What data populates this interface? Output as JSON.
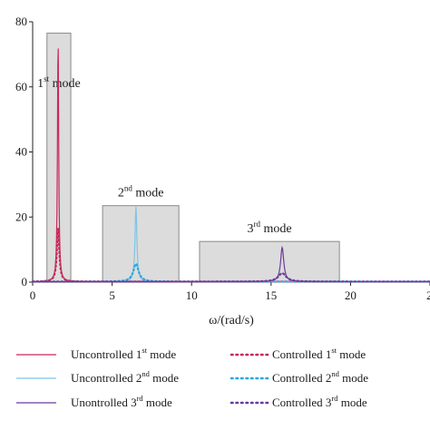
{
  "chart_data": {
    "type": "line",
    "title": "",
    "xlabel": "ω/(rad/s)",
    "ylabel": "",
    "xlim": [
      0,
      25
    ],
    "ylim": [
      0,
      80
    ],
    "x_ticks": [
      "0",
      "5",
      "10",
      "15",
      "20",
      "2"
    ],
    "y_ticks": [
      "0",
      "20",
      "40",
      "60",
      "80"
    ],
    "grid": false,
    "legend_position": "bottom",
    "mode_regions": [
      {
        "label": "1",
        "sup": "st",
        "suffix": " mode",
        "x_range": [
          0.9,
          2.4
        ],
        "y_max": 76.5
      },
      {
        "label": "2",
        "sup": "nd",
        "suffix": " mode",
        "x_range": [
          4.4,
          9.2
        ],
        "y_max": 23.5
      },
      {
        "label": "3",
        "sup": "rd",
        "suffix": " mode",
        "x_range": [
          10.5,
          19.3
        ],
        "y_max": 12.5
      }
    ],
    "series": [
      {
        "name": "Uncontrolled 1",
        "sup": "st",
        "suffix": " mode",
        "color": "#c8285a",
        "style": "solid",
        "peak_x": 1.6,
        "peak_y": 76,
        "width": 0.045
      },
      {
        "name": "Controlled 1",
        "sup": "st",
        "suffix": " mode",
        "color": "#c8285a",
        "style": "dotted",
        "peak_x": 1.6,
        "peak_y": 16.5,
        "width": 0.09
      },
      {
        "name": "Uncontrolled 2",
        "sup": "nd",
        "suffix": " mode",
        "color": "#7ec4e6",
        "style": "solid",
        "peak_x": 6.5,
        "peak_y": 23,
        "width": 0.07
      },
      {
        "name": "Controlled 2",
        "sup": "nd",
        "suffix": " mode",
        "color": "#2aa8de",
        "style": "dotted",
        "peak_x": 6.5,
        "peak_y": 5.5,
        "width": 0.2
      },
      {
        "name": "Unontrolled 3",
        "sup": "rd",
        "suffix": " mode",
        "color": "#6a3b9c",
        "style": "solid",
        "peak_x": 15.7,
        "peak_y": 10.5,
        "width": 0.12
      },
      {
        "name": "Controlled 3",
        "sup": "rd",
        "suffix": " mode",
        "color": "#6a3b9c",
        "style": "dotted",
        "peak_x": 15.7,
        "peak_y": 2.6,
        "width": 0.3
      }
    ]
  }
}
